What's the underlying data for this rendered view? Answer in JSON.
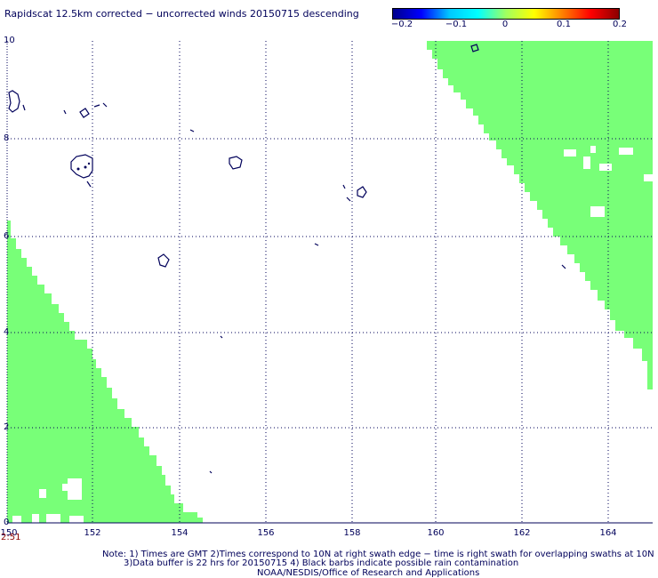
{
  "title": "Rapidscat 12.5km corrected − uncorrected winds 20150715 descending",
  "colorbar": {
    "tick_labels": [
      "−0.2",
      "−0.1",
      "0",
      "0.1",
      "0.2"
    ],
    "range": [
      -0.2,
      0.2
    ],
    "colors": [
      "#00008b",
      "#0000ff",
      "#00c8ff",
      "#00ffff",
      "#a0ff60",
      "#ffff00",
      "#ff8000",
      "#ff0000",
      "#8b0000"
    ]
  },
  "axes": {
    "lon_labels": [
      "150",
      "152",
      "154",
      "156",
      "158",
      "160",
      "162",
      "164"
    ],
    "lat_labels": [
      "10",
      "8",
      "6",
      "4",
      "2",
      "0"
    ],
    "lon_range": [
      150,
      165
    ],
    "lat_range": [
      0,
      10
    ],
    "grid": "dotted"
  },
  "time_label": "2:51",
  "swath_color": "#78ff78",
  "notes": {
    "line1": "Note: 1) Times are GMT 2)Times correspond to 10N at right swath edge − time is right swath for overlapping swaths at 10N",
    "line2": "3)Data buffer is 22 hrs for 20150715 4) Black barbs indicate possible rain contamination",
    "line3": "NOAA/NESDIS/Office of Research and Applications"
  }
}
